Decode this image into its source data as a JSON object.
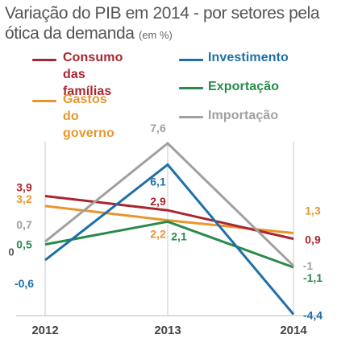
{
  "header": {
    "title_main": "Variação do PIB em 2014 - por setores pela ótica da demanda",
    "title_unit": "(em %)"
  },
  "chart_data": {
    "type": "line",
    "title": "Variação do PIB em 2014 - por setores pela ótica da demanda",
    "unit": "(em %)",
    "x": [
      "2012",
      "2013",
      "2014"
    ],
    "ylim": [
      -5,
      8.5
    ],
    "grid": {
      "vertical": true,
      "horizontal": false
    },
    "legend_position": "top",
    "series": [
      {
        "name": "Consumo\ndas famílias",
        "color": "#a8262f",
        "values": [
          3.9,
          2.9,
          0.9
        ],
        "labels": [
          "3,9",
          "2,9",
          "0,9"
        ]
      },
      {
        "name": "Gastos do\ngoverno",
        "color": "#e8962b",
        "values": [
          3.2,
          2.2,
          1.3
        ],
        "labels": [
          "3,2",
          "2,2",
          "1,3"
        ]
      },
      {
        "name": "Investimento",
        "color": "#1f6fa8",
        "values": [
          -0.6,
          6.1,
          -4.4
        ],
        "labels": [
          "-0,6",
          "6,1",
          "-4,4"
        ]
      },
      {
        "name": "Exportação",
        "color": "#2a8a4a",
        "values": [
          0.5,
          2.1,
          -1.1
        ],
        "labels": [
          "0,5",
          "2,1",
          "-1,1"
        ]
      },
      {
        "name": "Importação",
        "color": "#a0a0a0",
        "values": [
          0.7,
          7.6,
          -1.0
        ],
        "labels": [
          "0,7",
          "7,6",
          "-1"
        ]
      }
    ],
    "zero_label": "0"
  }
}
